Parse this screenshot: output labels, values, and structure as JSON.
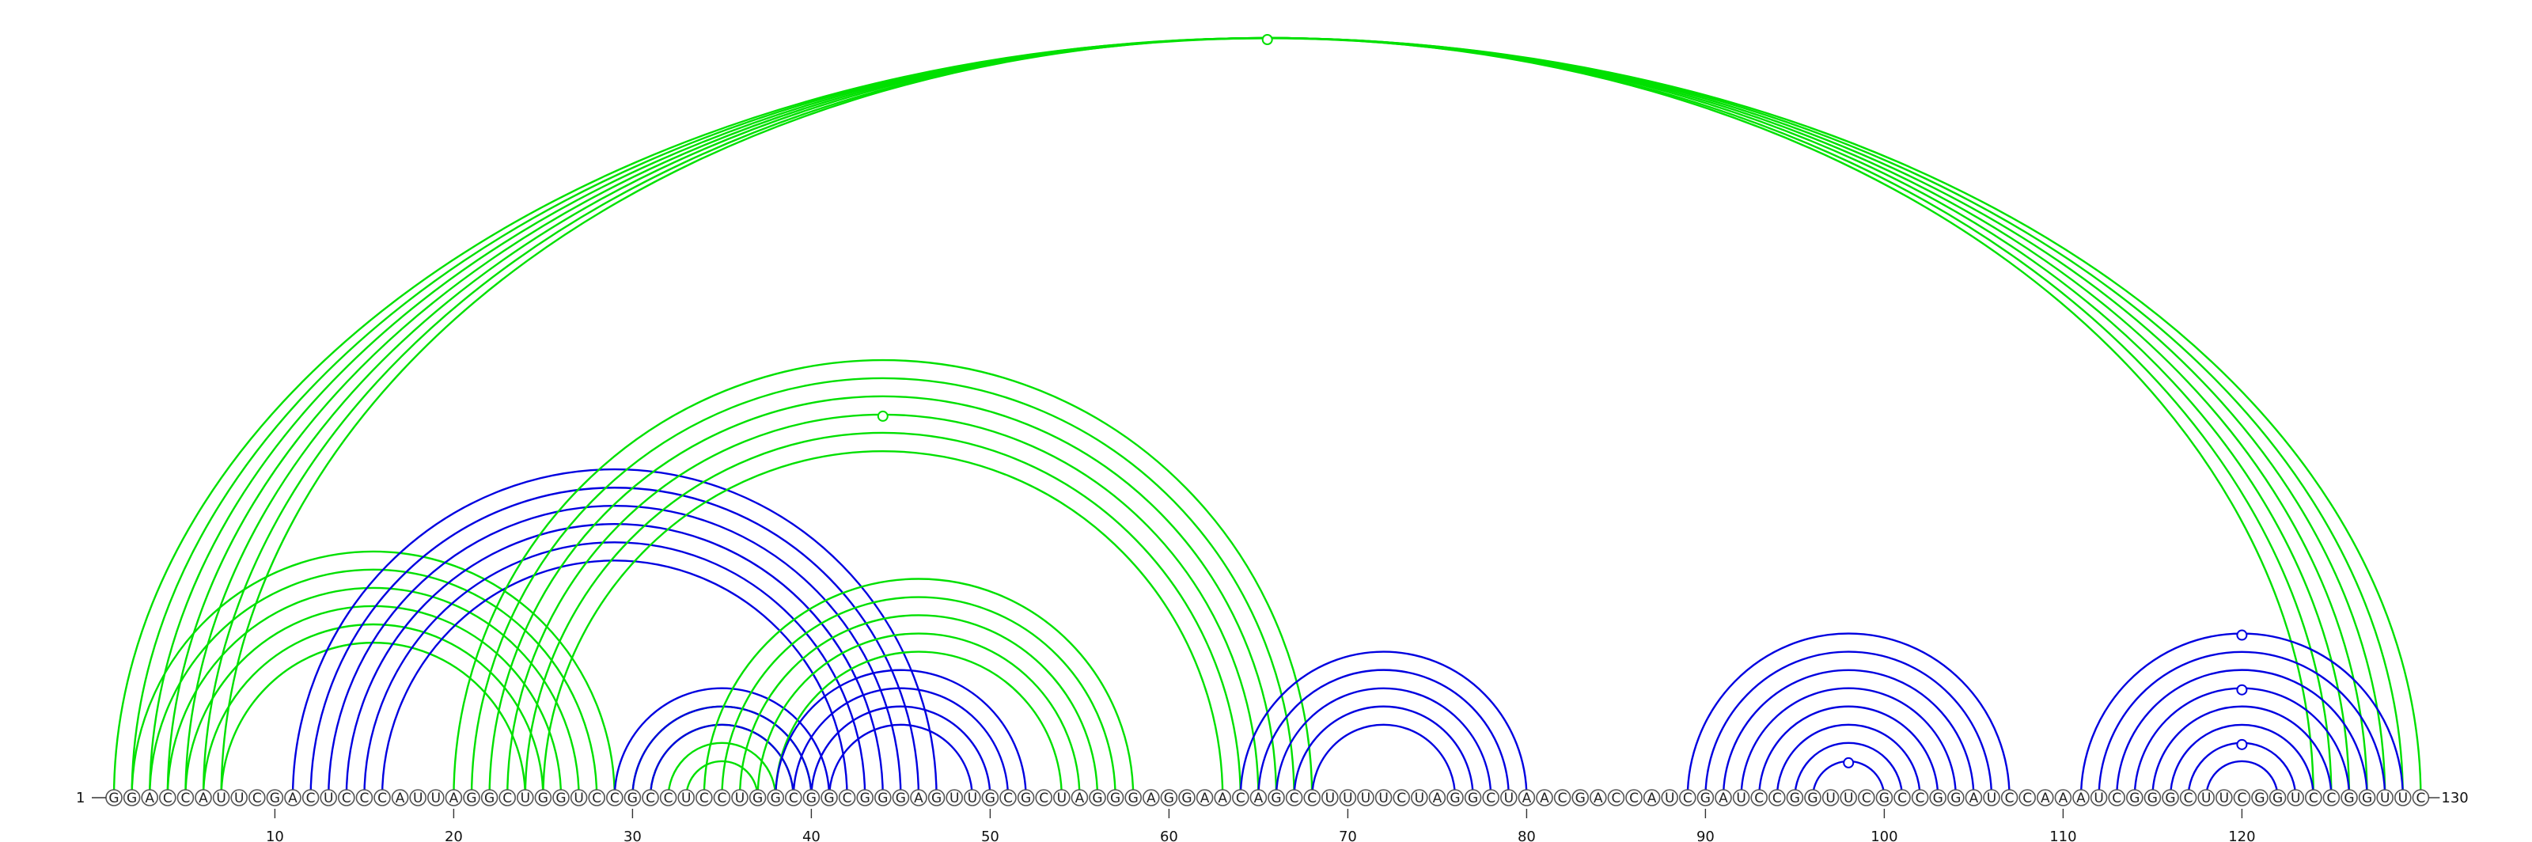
{
  "sequence": "GGACCAUUCGACUCCCAUUAGGCUGGUCCGCCUCCUGGCGGCGGGAGUUGCGCUAGGGAGGAACAGCCUUUUCUAGGCUAACGACCAUCGAUCCGGUUCGCCGGAUCCAAAUCGGGCUUCGGUCCGGUUC",
  "start_label": "1",
  "end_label": "130",
  "tick_labels": [
    "10",
    "20",
    "30",
    "40",
    "50",
    "60",
    "70",
    "80",
    "90",
    "100",
    "110",
    "120"
  ],
  "colors": {
    "green": "#00e000",
    "blue": "#0000e0"
  },
  "arc_groups": [
    {
      "name": "outer-green",
      "color": "green",
      "pairs": [
        [
          1,
          130
        ],
        [
          2,
          129
        ],
        [
          3,
          128
        ],
        [
          4,
          127
        ],
        [
          5,
          126
        ],
        [
          6,
          125
        ],
        [
          7,
          124
        ]
      ]
    },
    {
      "name": "left-green",
      "color": "green",
      "pairs": [
        [
          2,
          29
        ],
        [
          3,
          28
        ],
        [
          4,
          27
        ],
        [
          5,
          26
        ],
        [
          6,
          25
        ],
        [
          7,
          24
        ]
      ]
    },
    {
      "name": "blue-left-wide",
      "color": "blue",
      "pairs": [
        [
          11,
          47
        ],
        [
          12,
          46
        ],
        [
          13,
          45
        ],
        [
          14,
          44
        ],
        [
          15,
          43
        ],
        [
          16,
          42
        ]
      ]
    },
    {
      "name": "green-mid-wide",
      "color": "green",
      "pairs": [
        [
          20,
          68
        ],
        [
          21,
          67
        ],
        [
          22,
          66
        ],
        [
          23,
          65
        ],
        [
          24,
          64
        ],
        [
          25,
          63
        ]
      ]
    },
    {
      "name": "green-inner-a",
      "color": "green",
      "pairs": [
        [
          30,
          40
        ],
        [
          31,
          39
        ],
        [
          32,
          38
        ],
        [
          33,
          37
        ]
      ]
    },
    {
      "name": "blue-inner-a",
      "color": "blue",
      "pairs": [
        [
          29,
          41
        ],
        [
          30,
          40
        ],
        [
          31,
          39
        ]
      ]
    },
    {
      "name": "green-inner-b",
      "color": "green",
      "pairs": [
        [
          34,
          58
        ],
        [
          35,
          57
        ],
        [
          36,
          56
        ],
        [
          37,
          55
        ],
        [
          38,
          54
        ]
      ]
    },
    {
      "name": "blue-inner-b",
      "color": "blue",
      "pairs": [
        [
          38,
          52
        ],
        [
          39,
          51
        ],
        [
          40,
          50
        ],
        [
          41,
          49
        ]
      ]
    },
    {
      "name": "blue-loop-72",
      "color": "blue",
      "pairs": [
        [
          64,
          80
        ],
        [
          65,
          79
        ],
        [
          66,
          78
        ],
        [
          67,
          77
        ],
        [
          68,
          76
        ]
      ]
    },
    {
      "name": "blue-loop-98",
      "color": "blue",
      "pairs": [
        [
          89,
          107
        ],
        [
          90,
          106
        ],
        [
          91,
          105
        ],
        [
          92,
          104
        ],
        [
          93,
          103
        ],
        [
          94,
          102
        ],
        [
          95,
          101
        ],
        [
          96,
          100
        ]
      ]
    },
    {
      "name": "blue-loop-120",
      "color": "blue",
      "pairs": [
        [
          111,
          129
        ],
        [
          112,
          128
        ],
        [
          113,
          127
        ],
        [
          114,
          126
        ],
        [
          115,
          125
        ],
        [
          116,
          124
        ],
        [
          117,
          123
        ],
        [
          118,
          122
        ]
      ]
    }
  ]
}
